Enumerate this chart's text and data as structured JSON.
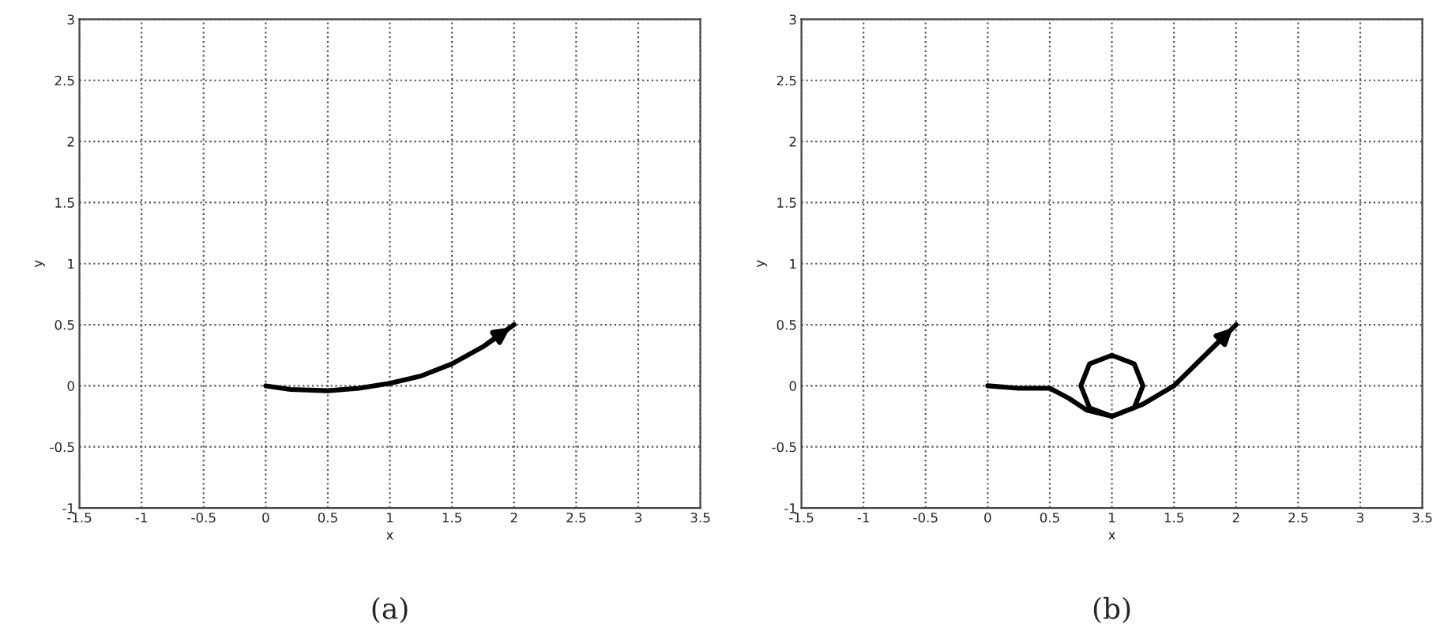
{
  "chart_data": [
    {
      "type": "line",
      "xlabel": "x",
      "ylabel": "y",
      "annotations": [
        "(a)"
      ],
      "xlim": [
        -1.5,
        3.5
      ],
      "ylim": [
        -1,
        3
      ],
      "xticks": [
        -1.5,
        -1,
        -0.5,
        0,
        0.5,
        1,
        1.5,
        2,
        2.5,
        3,
        3.5
      ],
      "yticks": [
        -1,
        -0.5,
        0,
        0.5,
        1,
        1.5,
        2,
        2.5,
        3
      ],
      "grid": true,
      "line_style": "solid",
      "series": [
        {
          "color": "#000000",
          "x": [
            0,
            0.2,
            0.5,
            0.75,
            1,
            1.25,
            1.5,
            1.75,
            2
          ],
          "values": [
            0,
            -0.03,
            -0.04,
            -0.02,
            0.02,
            0.08,
            0.18,
            0.32,
            0.5
          ]
        }
      ]
    },
    {
      "type": "line",
      "xlabel": "x",
      "ylabel": "y",
      "annotations": [
        "(b)"
      ],
      "xlim": [
        -1.5,
        3.5
      ],
      "ylim": [
        -1,
        3
      ],
      "xticks": [
        -1.5,
        -1,
        -0.5,
        0,
        0.5,
        1,
        1.5,
        2,
        2.5,
        3,
        3.5
      ],
      "yticks": [
        -1,
        -0.5,
        0,
        0.5,
        1,
        1.5,
        2,
        2.5,
        3
      ],
      "grid": true,
      "line_style": "solid",
      "series": [
        {
          "color": "#000000",
          "x": [
            0,
            0.25,
            0.5,
            0.65,
            0.8,
            1,
            1.18,
            1.25,
            1.18,
            1,
            0.82,
            0.75,
            0.82,
            1,
            1.25,
            1.5,
            1.75,
            2
          ],
          "values": [
            0,
            -0.02,
            -0.02,
            -0.1,
            -0.2,
            -0.25,
            -0.18,
            0,
            0.18,
            0.25,
            0.18,
            0,
            -0.18,
            -0.25,
            -0.15,
            0,
            0.25,
            0.5
          ]
        }
      ]
    }
  ]
}
